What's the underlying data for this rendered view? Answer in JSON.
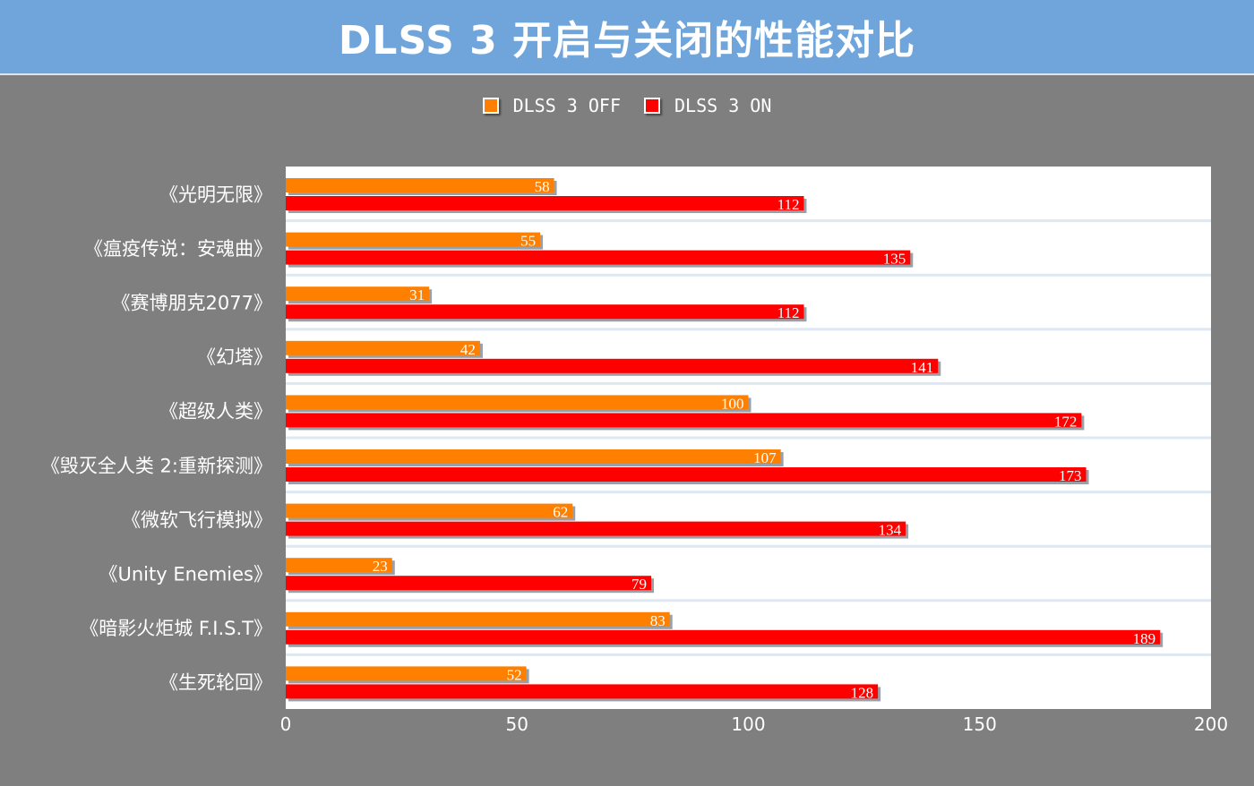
{
  "chart_data": {
    "type": "bar",
    "orientation": "horizontal",
    "title": "DLSS 3 开启与关闭的性能对比",
    "categories": [
      "《光明无限》",
      "《瘟疫传说：安魂曲》",
      "《赛博朋克2077》",
      "《幻塔》",
      "《超级人类》",
      "《毁灭全人类 2:重新探测》",
      "《微软飞行模拟》",
      "《Unity Enemies》",
      "《暗影火炬城 F.I.S.T》",
      "《生死轮回》"
    ],
    "series": [
      {
        "name": "DLSS 3 OFF",
        "color": "#ff8000",
        "values": [
          58,
          55,
          31,
          42,
          100,
          107,
          62,
          23,
          83,
          52
        ]
      },
      {
        "name": "DLSS 3 ON",
        "color": "#ff0000",
        "values": [
          112,
          135,
          112,
          141,
          172,
          173,
          134,
          79,
          189,
          128
        ]
      }
    ],
    "xlim": [
      0,
      200
    ],
    "xticks": [
      0,
      50,
      100,
      150,
      200
    ],
    "legend": "top",
    "grid": true,
    "colors": {
      "background": "#7f7f7f",
      "title_bar": "#6fa5db",
      "plot": "#ffffff"
    }
  }
}
